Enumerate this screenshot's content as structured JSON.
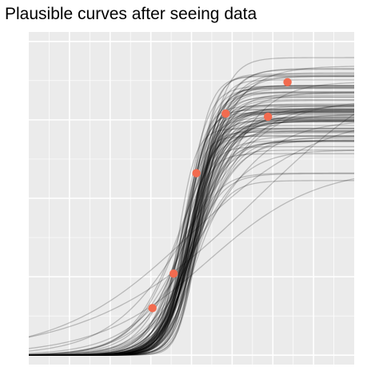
{
  "chart_data": {
    "type": "line",
    "title": "Plausible curves after seeing data",
    "xlabel": "",
    "ylabel": "",
    "xlim": [
      -1.0,
      1.0
    ],
    "ylim": [
      -0.03,
      1.03
    ],
    "grid": true,
    "axes_ticks_shown": false,
    "colors": {
      "panel_background": "#EBEBEB",
      "grid_line": "#FFFFFF",
      "curve": "#000000",
      "point": "#F26B4F"
    },
    "points": [
      {
        "x": -0.24,
        "y": 0.15
      },
      {
        "x": -0.11,
        "y": 0.26
      },
      {
        "x": 0.03,
        "y": 0.58
      },
      {
        "x": 0.21,
        "y": 0.77
      },
      {
        "x": 0.47,
        "y": 0.76
      },
      {
        "x": 0.59,
        "y": 0.87
      }
    ],
    "curve_family": "logistic",
    "curve_count": 100,
    "curves": [
      {
        "lower": 0.0,
        "upper": 0.8,
        "midpoint": 0.0,
        "slope": 12
      },
      {
        "lower": 0.0,
        "upper": 0.85,
        "midpoint": -0.02,
        "slope": 14
      },
      {
        "lower": 0.0,
        "upper": 0.75,
        "midpoint": 0.02,
        "slope": 11
      },
      {
        "lower": 0.0,
        "upper": 0.9,
        "midpoint": 0.03,
        "slope": 10
      },
      {
        "lower": 0.0,
        "upper": 0.7,
        "midpoint": -0.03,
        "slope": 15
      },
      {
        "lower": 0.0,
        "upper": 0.6,
        "midpoint": 0.1,
        "slope": 3
      },
      {
        "lower": 0.0,
        "upper": 1.0,
        "midpoint": 0.4,
        "slope": 2
      }
    ]
  }
}
